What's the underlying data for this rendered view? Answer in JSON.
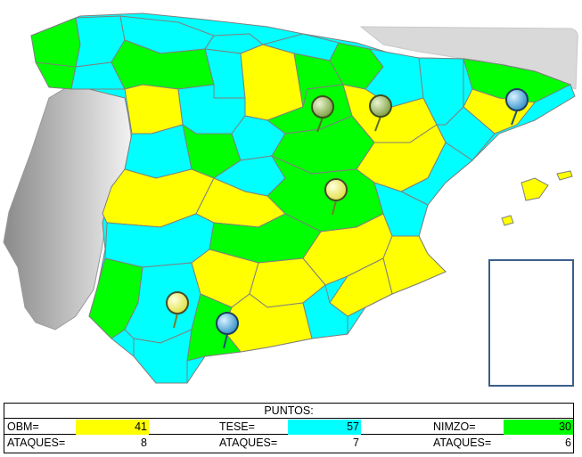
{
  "colors": {
    "obm": "#ffff00",
    "tese": "#00ffff",
    "nimzo": "#00ff00",
    "portugal": "#bdbdbd",
    "france": "#d9d9d9",
    "border": "#7f7f7f"
  },
  "legend": {
    "title": "PUNTOS:",
    "groups": [
      {
        "name": "OBM=",
        "points": "41",
        "attacks_label": "ATAQUES=",
        "attacks": "8",
        "color": "#ffff00"
      },
      {
        "name": "TESE=",
        "points": "57",
        "attacks_label": "ATAQUES=",
        "attacks": "7",
        "color": "#00ffff"
      },
      {
        "name": "NIMZO=",
        "points": "30",
        "attacks_label": "ATAQUES=",
        "attacks": "6",
        "color": "#00ff00"
      }
    ]
  },
  "pins": [
    {
      "name": "pin-burgos",
      "color": "green"
    },
    {
      "name": "pin-zaragoza",
      "color": "green"
    },
    {
      "name": "pin-barcelona",
      "color": "blue"
    },
    {
      "name": "pin-madrid",
      "color": "yellow"
    },
    {
      "name": "pin-sevilla",
      "color": "yellow"
    },
    {
      "name": "pin-malaga",
      "color": "blue"
    }
  ]
}
